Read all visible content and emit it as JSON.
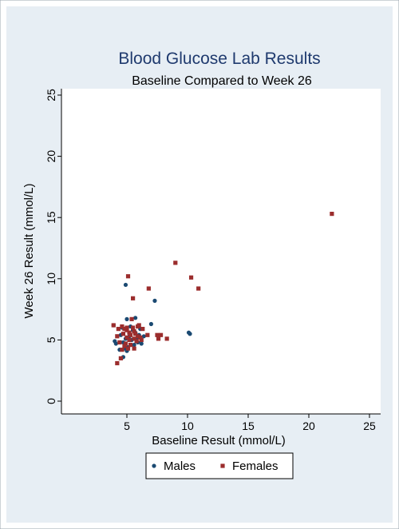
{
  "chart_data": {
    "type": "scatter",
    "title": "Blood Glucose Lab Results",
    "subtitle": "Baseline Compared to Week 26",
    "xlabel": "Baseline Result (mmol/L)",
    "ylabel": "Week 26 Result (mmol/L)",
    "xlim": [
      0,
      25
    ],
    "ylim": [
      0,
      25
    ],
    "xticks": [
      "5",
      "10",
      "15",
      "20",
      "25"
    ],
    "yticks": [
      "0",
      "5",
      "10",
      "15",
      "20",
      "25"
    ],
    "legend_position": "bottom",
    "grid": false,
    "colors": {
      "outer_background": "#e7eef4",
      "plot_background": "#ffffff",
      "title": "#1f3a6e",
      "text": "#000000"
    },
    "series": [
      {
        "name": "Males",
        "color": "#1b4a72",
        "marker": "circle",
        "points": [
          [
            4.9,
            9.5
          ],
          [
            7.3,
            8.2
          ],
          [
            10.1,
            5.6
          ],
          [
            10.2,
            5.5
          ],
          [
            7.0,
            6.3
          ],
          [
            5.7,
            6.8
          ],
          [
            5.0,
            6.7
          ],
          [
            3.9,
            6.2
          ],
          [
            4.6,
            6.0
          ],
          [
            5.3,
            6.1
          ],
          [
            4.0,
            4.9
          ],
          [
            4.1,
            4.7
          ],
          [
            4.4,
            4.2
          ],
          [
            4.7,
            3.6
          ],
          [
            4.8,
            4.3
          ],
          [
            5.0,
            4.1
          ],
          [
            5.1,
            4.4
          ],
          [
            5.3,
            4.6
          ],
          [
            5.6,
            4.6
          ],
          [
            5.9,
            4.8
          ],
          [
            6.2,
            4.7
          ],
          [
            6.4,
            5.3
          ],
          [
            6.1,
            5.9
          ],
          [
            5.8,
            5.1
          ],
          [
            5.4,
            5.0
          ],
          [
            5.2,
            5.3
          ],
          [
            4.9,
            5.1
          ],
          [
            4.7,
            4.8
          ],
          [
            5.5,
            5.8
          ],
          [
            6.0,
            5.4
          ],
          [
            5.7,
            5.6
          ],
          [
            4.5,
            5.4
          ]
        ]
      },
      {
        "name": "Females",
        "color": "#9b2d2d",
        "marker": "square",
        "points": [
          [
            21.9,
            15.3
          ],
          [
            9.0,
            11.3
          ],
          [
            10.3,
            10.1
          ],
          [
            10.9,
            9.2
          ],
          [
            5.1,
            10.2
          ],
          [
            6.8,
            9.2
          ],
          [
            5.5,
            8.4
          ],
          [
            3.9,
            6.2
          ],
          [
            4.3,
            5.9
          ],
          [
            4.6,
            6.1
          ],
          [
            5.4,
            6.7
          ],
          [
            5.0,
            6.0
          ],
          [
            5.2,
            5.6
          ],
          [
            5.6,
            5.7
          ],
          [
            5.9,
            6.1
          ],
          [
            6.3,
            5.9
          ],
          [
            4.2,
            5.3
          ],
          [
            4.7,
            5.5
          ],
          [
            5.0,
            5.2
          ],
          [
            5.3,
            5.4
          ],
          [
            5.6,
            5.1
          ],
          [
            5.9,
            5.3
          ],
          [
            6.1,
            5.2
          ],
          [
            6.7,
            5.4
          ],
          [
            7.5,
            5.4
          ],
          [
            7.6,
            5.1
          ],
          [
            7.8,
            5.4
          ],
          [
            8.3,
            5.1
          ],
          [
            4.4,
            4.8
          ],
          [
            4.9,
            4.7
          ],
          [
            5.3,
            4.6
          ],
          [
            5.6,
            4.3
          ],
          [
            5.8,
            4.9
          ],
          [
            6.2,
            5.0
          ],
          [
            4.6,
            4.2
          ],
          [
            4.8,
            4.5
          ],
          [
            5.1,
            4.3
          ],
          [
            4.5,
            3.5
          ],
          [
            4.2,
            3.1
          ],
          [
            5.0,
            5.8
          ],
          [
            5.5,
            6.0
          ],
          [
            4.8,
            5.9
          ],
          [
            5.7,
            5.5
          ],
          [
            6.0,
            6.2
          ],
          [
            5.2,
            5.0
          ]
        ]
      }
    ]
  }
}
